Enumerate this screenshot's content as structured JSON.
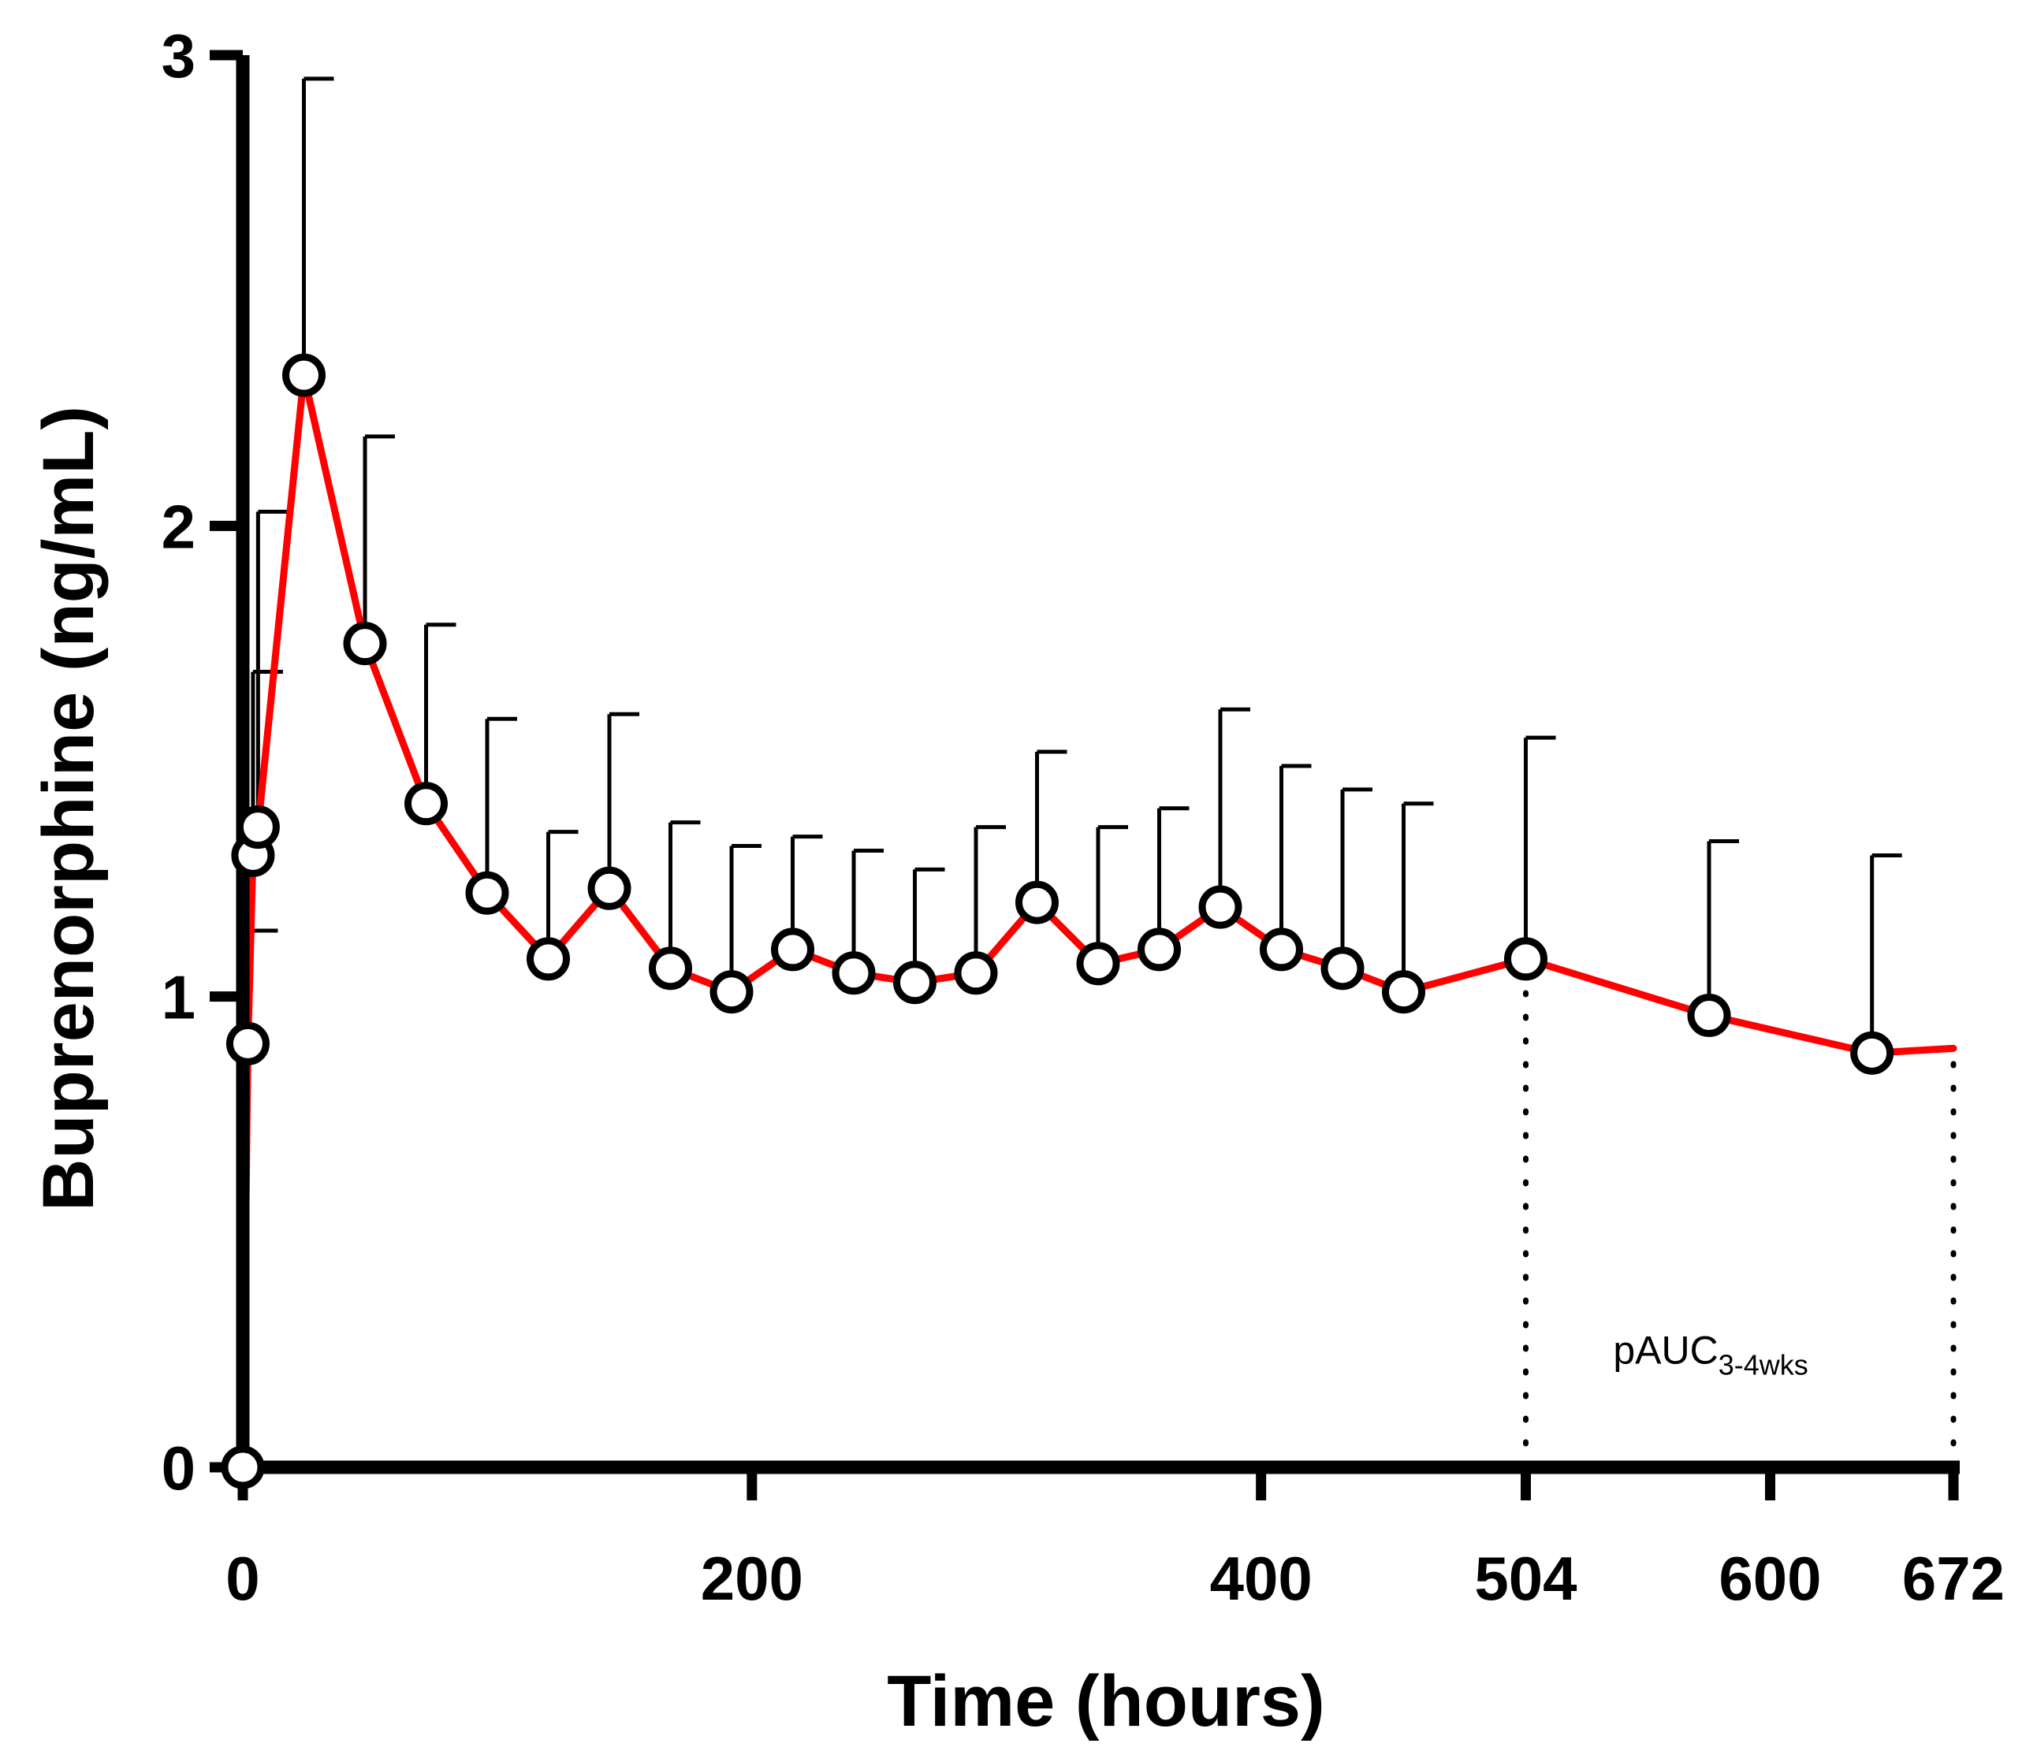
{
  "chart_data": {
    "type": "line",
    "title": "",
    "xlabel": "Time (hours)",
    "ylabel": "Buprenorphine  (ng/mL)",
    "xlim": [
      0,
      672
    ],
    "ylim": [
      0,
      3
    ],
    "grid": false,
    "x_ticks": [
      0,
      200,
      400,
      504,
      600,
      672
    ],
    "x_tick_labels": [
      "0",
      "200",
      "400",
      "504",
      "600",
      "672"
    ],
    "y_ticks": [
      0,
      1,
      2,
      3
    ],
    "y_tick_labels": [
      "0",
      "1",
      "2",
      "3"
    ],
    "series": [
      {
        "name": "Buprenorphine",
        "color": "#ff0000",
        "marker_fill": "#ffffff",
        "marker_edge": "#000000",
        "x": [
          0,
          2,
          4,
          6,
          24,
          48,
          72,
          96,
          120,
          144,
          168,
          192,
          216,
          240,
          264,
          288,
          312,
          336,
          360,
          384,
          408,
          432,
          456,
          504,
          576,
          640
        ],
        "y": [
          0,
          0.9,
          1.3,
          1.36,
          2.32,
          1.75,
          1.41,
          1.22,
          1.08,
          1.23,
          1.06,
          1.01,
          1.1,
          1.05,
          1.03,
          1.05,
          1.2,
          1.07,
          1.1,
          1.19,
          1.1,
          1.06,
          1.01,
          1.08,
          0.96,
          0.88
        ],
        "error_upper": [
          0,
          1.14,
          1.69,
          2.03,
          2.95,
          2.19,
          1.79,
          1.59,
          1.35,
          1.6,
          1.37,
          1.32,
          1.34,
          1.31,
          1.27,
          1.36,
          1.52,
          1.36,
          1.4,
          1.61,
          1.49,
          1.44,
          1.41,
          1.55,
          1.33,
          1.3
        ]
      }
    ],
    "line_end": {
      "x": 672,
      "y": 0.89
    },
    "annotations": [
      {
        "text_main": "pAUC",
        "text_sub": "3-4wks",
        "x": 560,
        "y": 0.22
      },
      {
        "type": "dotted_vline",
        "x": 504,
        "from_y": 0,
        "to_y": 1.08
      },
      {
        "type": "dotted_vline",
        "x": 672,
        "from_y": 0,
        "to_y": 0.89
      }
    ]
  }
}
